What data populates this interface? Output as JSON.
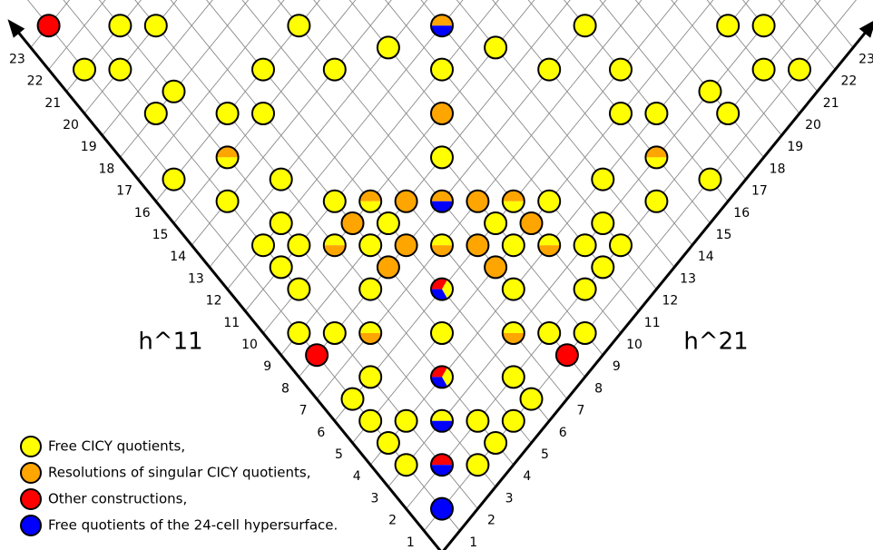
{
  "chart_data": {
    "type": "hodge-plot",
    "x_label": "h^11",
    "y_label": "h^21",
    "xticks": [
      1,
      2,
      3,
      4,
      5,
      6,
      7,
      8,
      9,
      10,
      11,
      12,
      13,
      14,
      15,
      16,
      17,
      18,
      19,
      20,
      21,
      22,
      23
    ],
    "yticks": [
      1,
      2,
      3,
      4,
      5,
      6,
      7,
      8,
      9,
      10,
      11,
      12,
      13,
      14,
      15,
      16,
      17,
      18,
      19,
      20,
      21,
      22,
      23
    ],
    "grid": true,
    "legend_position": "lower left",
    "series": [
      {
        "name": "Free CICY quotients,",
        "color": "#ffff00"
      },
      {
        "name": "Resolutions of singular CICY quotients,",
        "color": "#ffa500"
      },
      {
        "name": "Other constructions,",
        "color": "#ff0000"
      },
      {
        "name": "Free quotients of the 24-cell hypersurface.",
        "color": "#0000ff"
      }
    ],
    "points": [
      {
        "h11": 23,
        "h21": 1,
        "kinds": [
          2
        ]
      },
      {
        "h11": 21,
        "h21": 3,
        "kinds": [
          0
        ]
      },
      {
        "h11": 20,
        "h21": 4,
        "kinds": [
          0
        ]
      },
      {
        "h11": 16,
        "h21": 8,
        "kinds": [
          0
        ]
      },
      {
        "h11": 12,
        "h21": 12,
        "kinds": [
          1,
          3
        ]
      },
      {
        "h11": 8,
        "h21": 16,
        "kinds": [
          0
        ]
      },
      {
        "h11": 4,
        "h21": 20,
        "kinds": [
          0
        ]
      },
      {
        "h11": 3,
        "h21": 21,
        "kinds": [
          0
        ]
      },
      {
        "h11": 13,
        "h21": 10,
        "kinds": [
          0
        ]
      },
      {
        "h11": 10,
        "h21": 13,
        "kinds": [
          0
        ]
      },
      {
        "h11": 21,
        "h21": 1,
        "kinds": [
          0
        ]
      },
      {
        "h11": 20,
        "h21": 2,
        "kinds": [
          0
        ]
      },
      {
        "h11": 16,
        "h21": 6,
        "kinds": [
          0
        ]
      },
      {
        "h11": 14,
        "h21": 8,
        "kinds": [
          0
        ]
      },
      {
        "h11": 11,
        "h21": 11,
        "kinds": [
          0
        ]
      },
      {
        "h11": 8,
        "h21": 14,
        "kinds": [
          0
        ]
      },
      {
        "h11": 6,
        "h21": 16,
        "kinds": [
          0
        ]
      },
      {
        "h11": 2,
        "h21": 20,
        "kinds": [
          0
        ]
      },
      {
        "h11": 1,
        "h21": 21,
        "kinds": [
          0
        ]
      },
      {
        "h11": 18,
        "h21": 3,
        "kinds": [
          0
        ]
      },
      {
        "h11": 3,
        "h21": 18,
        "kinds": [
          0
        ]
      },
      {
        "h11": 18,
        "h21": 2,
        "kinds": [
          0
        ]
      },
      {
        "h11": 16,
        "h21": 4,
        "kinds": [
          0
        ]
      },
      {
        "h11": 15,
        "h21": 5,
        "kinds": [
          0
        ]
      },
      {
        "h11": 10,
        "h21": 10,
        "kinds": [
          1
        ]
      },
      {
        "h11": 5,
        "h21": 15,
        "kinds": [
          0
        ]
      },
      {
        "h11": 4,
        "h21": 16,
        "kinds": [
          0
        ]
      },
      {
        "h11": 2,
        "h21": 18,
        "kinds": [
          0
        ]
      },
      {
        "h11": 15,
        "h21": 3,
        "kinds": [
          1,
          0
        ]
      },
      {
        "h11": 9,
        "h21": 9,
        "kinds": [
          0
        ]
      },
      {
        "h11": 3,
        "h21": 15,
        "kinds": [
          1,
          0
        ]
      },
      {
        "h11": 16,
        "h21": 1,
        "kinds": [
          0
        ]
      },
      {
        "h11": 13,
        "h21": 4,
        "kinds": [
          0
        ]
      },
      {
        "h11": 4,
        "h21": 13,
        "kinds": [
          0
        ]
      },
      {
        "h11": 1,
        "h21": 16,
        "kinds": [
          0
        ]
      },
      {
        "h11": 14,
        "h21": 2,
        "kinds": [
          0
        ]
      },
      {
        "h11": 11,
        "h21": 5,
        "kinds": [
          0
        ]
      },
      {
        "h11": 10,
        "h21": 6,
        "kinds": [
          1,
          0
        ]
      },
      {
        "h11": 9,
        "h21": 7,
        "kinds": [
          1
        ]
      },
      {
        "h11": 8,
        "h21": 8,
        "kinds": [
          1,
          3
        ]
      },
      {
        "h11": 7,
        "h21": 9,
        "kinds": [
          1
        ]
      },
      {
        "h11": 6,
        "h21": 10,
        "kinds": [
          1,
          0
        ]
      },
      {
        "h11": 5,
        "h21": 11,
        "kinds": [
          0
        ]
      },
      {
        "h11": 2,
        "h21": 14,
        "kinds": [
          0
        ]
      },
      {
        "h11": 12,
        "h21": 3,
        "kinds": [
          0
        ]
      },
      {
        "h11": 10,
        "h21": 5,
        "kinds": [
          1
        ]
      },
      {
        "h11": 9,
        "h21": 6,
        "kinds": [
          0
        ]
      },
      {
        "h11": 6,
        "h21": 9,
        "kinds": [
          0
        ]
      },
      {
        "h11": 5,
        "h21": 10,
        "kinds": [
          1
        ]
      },
      {
        "h11": 3,
        "h21": 12,
        "kinds": [
          0
        ]
      },
      {
        "h11": 12,
        "h21": 2,
        "kinds": [
          0
        ]
      },
      {
        "h11": 11,
        "h21": 3,
        "kinds": [
          0
        ]
      },
      {
        "h11": 10,
        "h21": 4,
        "kinds": [
          0,
          1
        ]
      },
      {
        "h11": 9,
        "h21": 5,
        "kinds": [
          0
        ]
      },
      {
        "h11": 8,
        "h21": 6,
        "kinds": [
          1
        ]
      },
      {
        "h11": 7,
        "h21": 7,
        "kinds": [
          0,
          1
        ]
      },
      {
        "h11": 6,
        "h21": 8,
        "kinds": [
          1
        ]
      },
      {
        "h11": 5,
        "h21": 9,
        "kinds": [
          0
        ]
      },
      {
        "h11": 4,
        "h21": 10,
        "kinds": [
          0,
          1
        ]
      },
      {
        "h11": 3,
        "h21": 11,
        "kinds": [
          0
        ]
      },
      {
        "h11": 2,
        "h21": 12,
        "kinds": [
          0
        ]
      },
      {
        "h11": 11,
        "h21": 2,
        "kinds": [
          0
        ]
      },
      {
        "h11": 8,
        "h21": 5,
        "kinds": [
          1
        ]
      },
      {
        "h11": 5,
        "h21": 8,
        "kinds": [
          1
        ]
      },
      {
        "h11": 2,
        "h21": 11,
        "kinds": [
          0
        ]
      },
      {
        "h11": 10,
        "h21": 2,
        "kinds": [
          0
        ]
      },
      {
        "h11": 8,
        "h21": 4,
        "kinds": [
          0
        ]
      },
      {
        "h11": 6,
        "h21": 6,
        "kinds": [
          2,
          0,
          3
        ]
      },
      {
        "h11": 4,
        "h21": 8,
        "kinds": [
          0
        ]
      },
      {
        "h11": 2,
        "h21": 10,
        "kinds": [
          0
        ]
      },
      {
        "h11": 9,
        "h21": 1,
        "kinds": [
          0
        ]
      },
      {
        "h11": 8,
        "h21": 2,
        "kinds": [
          0
        ]
      },
      {
        "h11": 7,
        "h21": 3,
        "kinds": [
          0,
          1
        ]
      },
      {
        "h11": 5,
        "h21": 5,
        "kinds": [
          0
        ]
      },
      {
        "h11": 3,
        "h21": 7,
        "kinds": [
          0,
          1
        ]
      },
      {
        "h11": 2,
        "h21": 8,
        "kinds": [
          0
        ]
      },
      {
        "h11": 1,
        "h21": 9,
        "kinds": [
          0
        ]
      },
      {
        "h11": 8,
        "h21": 1,
        "kinds": [
          2
        ]
      },
      {
        "h11": 1,
        "h21": 8,
        "kinds": [
          2
        ]
      },
      {
        "h11": 6,
        "h21": 2,
        "kinds": [
          0
        ]
      },
      {
        "h11": 4,
        "h21": 4,
        "kinds": [
          2,
          0,
          3
        ]
      },
      {
        "h11": 2,
        "h21": 6,
        "kinds": [
          0
        ]
      },
      {
        "h11": 6,
        "h21": 1,
        "kinds": [
          0
        ]
      },
      {
        "h11": 1,
        "h21": 6,
        "kinds": [
          0
        ]
      },
      {
        "h11": 5,
        "h21": 1,
        "kinds": [
          0
        ]
      },
      {
        "h11": 4,
        "h21": 2,
        "kinds": [
          0
        ]
      },
      {
        "h11": 3,
        "h21": 3,
        "kinds": [
          0,
          3
        ]
      },
      {
        "h11": 2,
        "h21": 4,
        "kinds": [
          0
        ]
      },
      {
        "h11": 1,
        "h21": 5,
        "kinds": [
          0
        ]
      },
      {
        "h11": 4,
        "h21": 1,
        "kinds": [
          0
        ]
      },
      {
        "h11": 1,
        "h21": 4,
        "kinds": [
          0
        ]
      },
      {
        "h11": 3,
        "h21": 1,
        "kinds": [
          0
        ]
      },
      {
        "h11": 2,
        "h21": 2,
        "kinds": [
          2,
          3
        ]
      },
      {
        "h11": 1,
        "h21": 3,
        "kinds": [
          0
        ]
      },
      {
        "h11": 1,
        "h21": 1,
        "kinds": [
          3
        ]
      }
    ]
  }
}
